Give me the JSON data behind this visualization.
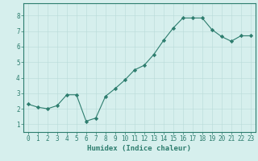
{
  "x": [
    0,
    1,
    2,
    3,
    4,
    5,
    6,
    7,
    8,
    9,
    10,
    11,
    12,
    13,
    14,
    15,
    16,
    17,
    18,
    19,
    20,
    21,
    22,
    23
  ],
  "y": [
    2.3,
    2.1,
    2.0,
    2.2,
    2.9,
    2.9,
    1.2,
    1.4,
    2.8,
    3.3,
    3.85,
    4.5,
    4.8,
    5.5,
    6.4,
    7.2,
    7.85,
    7.85,
    7.85,
    7.1,
    6.65,
    6.35,
    6.7,
    6.7
  ],
  "line_color": "#2d7d6e",
  "marker": "D",
  "marker_size": 2.2,
  "bg_color": "#d6efed",
  "grid_color": "#b8dbd8",
  "xlabel": "Humidex (Indice chaleur)",
  "xlabel_fontsize": 6.5,
  "tick_fontsize": 5.5,
  "xlim": [
    -0.5,
    23.5
  ],
  "ylim": [
    0.5,
    8.8
  ],
  "yticks": [
    1,
    2,
    3,
    4,
    5,
    6,
    7,
    8
  ],
  "xticks": [
    0,
    1,
    2,
    3,
    4,
    5,
    6,
    7,
    8,
    9,
    10,
    11,
    12,
    13,
    14,
    15,
    16,
    17,
    18,
    19,
    20,
    21,
    22,
    23
  ],
  "axis_color": "#2d7d6e",
  "label_color": "#2d7d6e",
  "spine_color": "#2d7d6e"
}
